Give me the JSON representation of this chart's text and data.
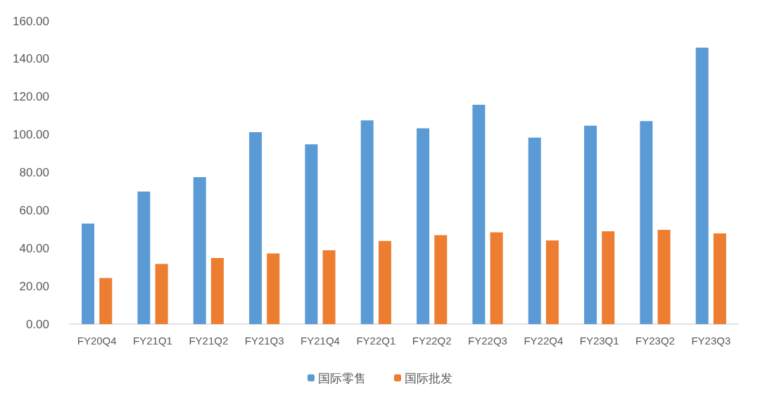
{
  "chart_data": {
    "type": "bar",
    "categories": [
      "FY20Q4",
      "FY21Q1",
      "FY21Q2",
      "FY21Q3",
      "FY21Q4",
      "FY22Q1",
      "FY22Q2",
      "FY22Q3",
      "FY22Q4",
      "FY23Q1",
      "FY23Q2",
      "FY23Q3"
    ],
    "series": [
      {
        "name": "国际零售",
        "color": "#5b9bd5",
        "values": [
          53.1,
          70.0,
          77.6,
          101.3,
          94.9,
          107.6,
          103.4,
          115.8,
          98.5,
          104.8,
          107.2,
          146.0
        ]
      },
      {
        "name": "国际批发",
        "color": "#ed7d31",
        "values": [
          24.3,
          31.7,
          34.9,
          37.3,
          39.0,
          43.9,
          47.0,
          48.4,
          44.2,
          49.0,
          49.7,
          47.9
        ]
      }
    ],
    "ylim": [
      0,
      160
    ],
    "yticks": [
      {
        "value": 0,
        "label": "0.00"
      },
      {
        "value": 20,
        "label": "20.00"
      },
      {
        "value": 40,
        "label": "40.00"
      },
      {
        "value": 60,
        "label": "60.00"
      },
      {
        "value": 80,
        "label": "80.00"
      },
      {
        "value": 100,
        "label": "100.00"
      },
      {
        "value": 120,
        "label": "120.00"
      },
      {
        "value": 140,
        "label": "140.00"
      },
      {
        "value": 160,
        "label": "160.00"
      }
    ],
    "grid": false,
    "legend": "bottom"
  }
}
